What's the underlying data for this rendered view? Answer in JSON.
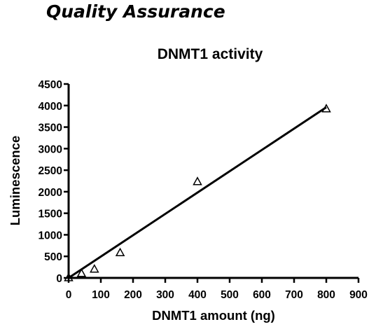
{
  "page": {
    "heading": "Quality Assurance"
  },
  "chart_data": {
    "type": "scatter",
    "title": "DNMT1 activity",
    "xlabel": "DNMT1 amount (ng)",
    "ylabel": "Luminescence",
    "xlim": [
      0,
      900
    ],
    "ylim": [
      0,
      4500
    ],
    "xticks": [
      0,
      100,
      200,
      300,
      400,
      500,
      600,
      700,
      800,
      900
    ],
    "yticks": [
      0,
      500,
      1000,
      1500,
      2000,
      2500,
      3000,
      3500,
      4000,
      4500
    ],
    "grid": false,
    "legend": "none",
    "series": [
      {
        "marker": "open-triangle",
        "x": [
          0,
          40,
          80,
          160,
          400,
          800
        ],
        "y": [
          0,
          100,
          200,
          580,
          2230,
          3920
        ]
      }
    ],
    "fit_line": {
      "style": "linear",
      "x": [
        0,
        800
      ],
      "y": [
        0,
        3960
      ]
    }
  }
}
